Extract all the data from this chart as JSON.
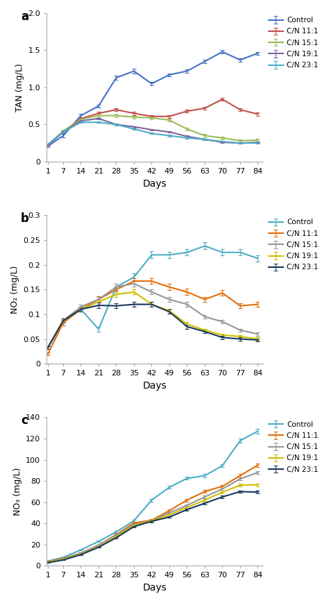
{
  "days": [
    1,
    7,
    14,
    21,
    28,
    35,
    42,
    49,
    56,
    63,
    70,
    77,
    84
  ],
  "tan": {
    "Control": [
      0.21,
      0.35,
      0.62,
      0.75,
      1.13,
      1.22,
      1.05,
      1.17,
      1.22,
      1.35,
      1.48,
      1.37,
      1.46
    ],
    "C/N 11:1": [
      0.22,
      0.4,
      0.58,
      0.65,
      0.7,
      0.65,
      0.61,
      0.61,
      0.68,
      0.72,
      0.84,
      0.7,
      0.64
    ],
    "C/N 15:1": [
      0.23,
      0.41,
      0.57,
      0.62,
      0.62,
      0.6,
      0.59,
      0.56,
      0.44,
      0.35,
      0.32,
      0.28,
      0.29
    ],
    "C/N 19:1": [
      0.23,
      0.4,
      0.55,
      0.58,
      0.5,
      0.47,
      0.43,
      0.4,
      0.34,
      0.3,
      0.26,
      0.25,
      0.26
    ],
    "C/N 23:1": [
      0.23,
      0.4,
      0.53,
      0.53,
      0.5,
      0.44,
      0.38,
      0.35,
      0.32,
      0.3,
      0.27,
      0.25,
      0.25
    ]
  },
  "tan_err": {
    "Control": [
      0.01,
      0.02,
      0.02,
      0.02,
      0.03,
      0.03,
      0.02,
      0.02,
      0.02,
      0.02,
      0.02,
      0.02,
      0.02
    ],
    "C/N 11:1": [
      0.01,
      0.02,
      0.02,
      0.02,
      0.02,
      0.02,
      0.02,
      0.02,
      0.02,
      0.02,
      0.02,
      0.02,
      0.02
    ],
    "C/N 15:1": [
      0.01,
      0.02,
      0.02,
      0.02,
      0.02,
      0.02,
      0.02,
      0.02,
      0.02,
      0.02,
      0.02,
      0.02,
      0.02
    ],
    "C/N 19:1": [
      0.01,
      0.01,
      0.01,
      0.01,
      0.01,
      0.01,
      0.01,
      0.01,
      0.01,
      0.01,
      0.01,
      0.01,
      0.01
    ],
    "C/N 23:1": [
      0.01,
      0.01,
      0.01,
      0.01,
      0.01,
      0.01,
      0.01,
      0.01,
      0.01,
      0.01,
      0.01,
      0.01,
      0.01
    ]
  },
  "no2": {
    "Control": [
      0.033,
      0.083,
      0.11,
      0.07,
      0.155,
      0.175,
      0.22,
      0.22,
      0.225,
      0.238,
      0.225,
      0.225,
      0.213
    ],
    "C/N 11:1": [
      0.02,
      0.083,
      0.11,
      0.13,
      0.15,
      0.167,
      0.167,
      0.155,
      0.145,
      0.13,
      0.143,
      0.117,
      0.12
    ],
    "C/N 15:1": [
      0.033,
      0.087,
      0.115,
      0.13,
      0.155,
      0.162,
      0.145,
      0.13,
      0.12,
      0.095,
      0.085,
      0.068,
      0.06
    ],
    "C/N 19:1": [
      0.033,
      0.087,
      0.11,
      0.125,
      0.14,
      0.145,
      0.12,
      0.107,
      0.08,
      0.068,
      0.058,
      0.055,
      0.05
    ],
    "C/N 23:1": [
      0.033,
      0.087,
      0.11,
      0.118,
      0.117,
      0.12,
      0.12,
      0.105,
      0.075,
      0.065,
      0.053,
      0.05,
      0.048
    ]
  },
  "no2_err": {
    "Control": [
      0.003,
      0.005,
      0.005,
      0.005,
      0.007,
      0.007,
      0.007,
      0.006,
      0.006,
      0.007,
      0.006,
      0.006,
      0.006
    ],
    "C/N 11:1": [
      0.003,
      0.005,
      0.005,
      0.006,
      0.006,
      0.006,
      0.006,
      0.006,
      0.006,
      0.005,
      0.006,
      0.005,
      0.005
    ],
    "C/N 15:1": [
      0.003,
      0.004,
      0.005,
      0.005,
      0.006,
      0.006,
      0.005,
      0.005,
      0.005,
      0.004,
      0.004,
      0.003,
      0.003
    ],
    "C/N 19:1": [
      0.003,
      0.004,
      0.004,
      0.005,
      0.005,
      0.005,
      0.005,
      0.004,
      0.004,
      0.003,
      0.003,
      0.003,
      0.003
    ],
    "C/N 23:1": [
      0.003,
      0.004,
      0.004,
      0.005,
      0.005,
      0.005,
      0.005,
      0.004,
      0.004,
      0.003,
      0.003,
      0.003,
      0.003
    ]
  },
  "no3": {
    "Control": [
      4.5,
      8.0,
      15.0,
      23.0,
      32.0,
      42.5,
      62.0,
      74.0,
      82.5,
      85.0,
      94.5,
      118.0,
      127.0
    ],
    "C/N 11:1": [
      4.0,
      7.0,
      12.0,
      19.5,
      29.5,
      40.5,
      43.0,
      52.0,
      62.0,
      70.0,
      75.0,
      85.0,
      95.0
    ],
    "C/N 15:1": [
      3.5,
      6.5,
      12.0,
      19.5,
      29.0,
      39.0,
      42.5,
      50.0,
      57.0,
      65.0,
      72.5,
      82.0,
      88.0
    ],
    "C/N 19:1": [
      3.5,
      6.0,
      11.0,
      18.0,
      27.5,
      38.0,
      42.5,
      48.0,
      55.0,
      62.0,
      69.5,
      76.0,
      76.5
    ],
    "C/N 23:1": [
      3.0,
      5.5,
      10.5,
      17.5,
      26.5,
      37.0,
      42.0,
      46.0,
      53.0,
      59.0,
      65.0,
      70.0,
      69.5
    ]
  },
  "no3_err": {
    "Control": [
      0.3,
      0.4,
      0.5,
      0.7,
      0.8,
      1.0,
      1.2,
      1.3,
      1.4,
      1.4,
      1.5,
      2.0,
      2.2
    ],
    "C/N 11:1": [
      0.3,
      0.4,
      0.5,
      0.6,
      0.7,
      0.9,
      1.0,
      1.1,
      1.2,
      1.3,
      1.3,
      1.5,
      1.6
    ],
    "C/N 15:1": [
      0.3,
      0.4,
      0.5,
      0.6,
      0.7,
      0.9,
      1.0,
      1.0,
      1.1,
      1.2,
      1.3,
      1.4,
      1.5
    ],
    "C/N 19:1": [
      0.3,
      0.3,
      0.4,
      0.5,
      0.6,
      0.8,
      0.9,
      1.0,
      1.0,
      1.1,
      1.2,
      1.3,
      1.3
    ],
    "C/N 23:1": [
      0.3,
      0.3,
      0.4,
      0.5,
      0.6,
      0.8,
      0.9,
      0.9,
      1.0,
      1.0,
      1.1,
      1.2,
      1.2
    ]
  },
  "colors": {
    "Control": "#4472C4",
    "C/N 11:1": "#C0504D",
    "C/N 15:1": "#9BBB59",
    "C/N 19:1": "#8064A2",
    "C/N 23:1": "#4BACC6"
  },
  "colors_b": {
    "Control": "#4BACC6",
    "C/N 11:1": "#E36C09",
    "C/N 15:1": "#969696",
    "C/N 19:1": "#CCC000",
    "C/N 23:1": "#17375E"
  },
  "colors_c": {
    "Control": "#4BACC6",
    "C/N 11:1": "#E36C09",
    "C/N 15:1": "#969696",
    "C/N 19:1": "#CCC000",
    "C/N 23:1": "#17375E"
  },
  "tan_ylim": [
    0,
    2.0
  ],
  "no2_ylim": [
    0,
    0.3
  ],
  "no3_ylim": [
    0,
    140
  ],
  "tan_yticks": [
    0,
    0.5,
    1.0,
    1.5,
    2.0
  ],
  "no2_yticks": [
    0,
    0.05,
    0.1,
    0.15,
    0.2,
    0.25,
    0.3
  ],
  "no3_yticks": [
    0,
    20,
    40,
    60,
    80,
    100,
    120,
    140
  ],
  "series_order": [
    "Control",
    "C/N 11:1",
    "C/N 15:1",
    "C/N 19:1",
    "C/N 23:1"
  ],
  "panel_labels": [
    "a",
    "b",
    "c"
  ],
  "ylabels": [
    "TAN (mg/L)",
    "NO₂ (mg/L)",
    "NO₃ (mg/L)"
  ],
  "xlabel": "Days"
}
